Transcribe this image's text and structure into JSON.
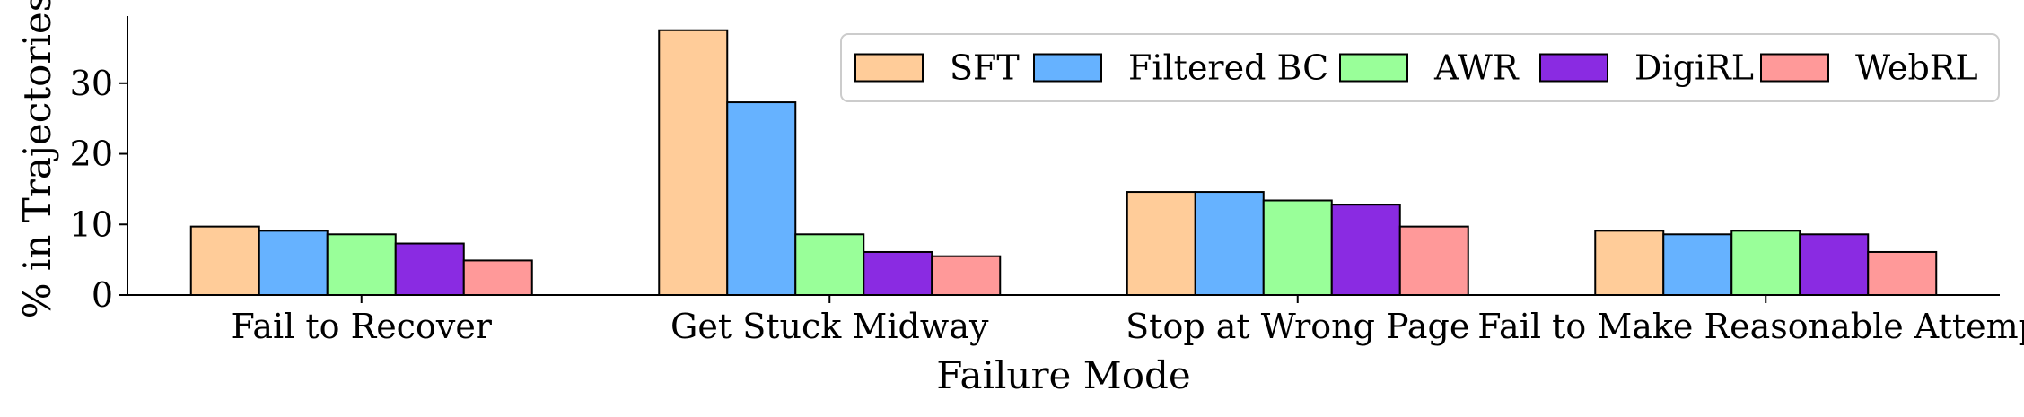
{
  "chart_data": {
    "type": "bar",
    "title": "",
    "xlabel": "Failure Mode",
    "ylabel": "% in Trajectories",
    "categories": [
      "Fail to Recover",
      "Get Stuck Midway",
      "Stop at Wrong Page",
      "Fail to Make Reasonable Attempt"
    ],
    "series": [
      {
        "name": "SFT",
        "color": "#ffcc99",
        "values": [
          9.7,
          37.5,
          14.6,
          9.1
        ]
      },
      {
        "name": "Filtered BC",
        "color": "#66b2ff",
        "values": [
          9.1,
          27.3,
          14.6,
          8.6
        ]
      },
      {
        "name": "AWR",
        "color": "#99ff99",
        "values": [
          8.6,
          8.6,
          13.4,
          9.1
        ]
      },
      {
        "name": "DigiRL",
        "color": "#8a2be2",
        "values": [
          7.3,
          6.1,
          12.8,
          8.6
        ]
      },
      {
        "name": "WebRL",
        "color": "#ff9999",
        "values": [
          4.9,
          5.5,
          9.7,
          6.1
        ]
      }
    ],
    "yticks": [
      0,
      10,
      20,
      30
    ],
    "ylim": [
      0,
      39.5
    ],
    "grid": false,
    "legend": {
      "placement": "top-right",
      "columns": 5
    }
  }
}
